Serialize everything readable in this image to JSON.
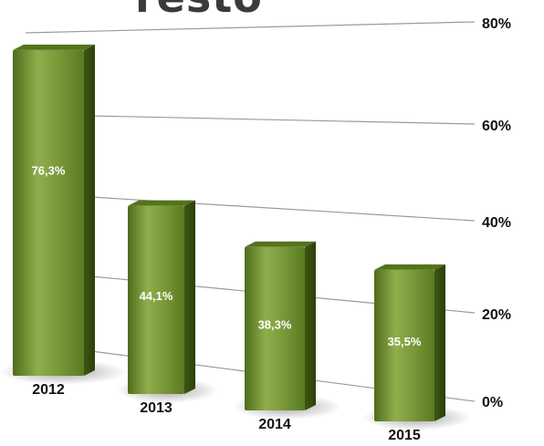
{
  "title": "resto",
  "chart_data": {
    "type": "bar",
    "title": "resto",
    "categories": [
      "2012",
      "2013",
      "2014",
      "2015"
    ],
    "values": [
      76.3,
      44.1,
      38.3,
      35.5
    ],
    "value_labels": [
      "76,3%",
      "44,1%",
      "38,3%",
      "35,5%"
    ],
    "yticks": [
      0,
      20,
      40,
      60,
      80
    ],
    "ytick_labels": [
      "0%",
      "20%",
      "40%",
      "60%",
      "80%"
    ],
    "ylim": [
      0,
      80
    ],
    "ylabel": "",
    "xlabel": "",
    "grid": true,
    "colors": {
      "bar_light": "#9ab85a",
      "bar_mid": "#6b8a2c",
      "bar_dark": "#3f5a14",
      "bar_top": "#55721d",
      "grid": "#9a9a9a",
      "text": "#111111",
      "value_text": "#ffffff"
    }
  }
}
